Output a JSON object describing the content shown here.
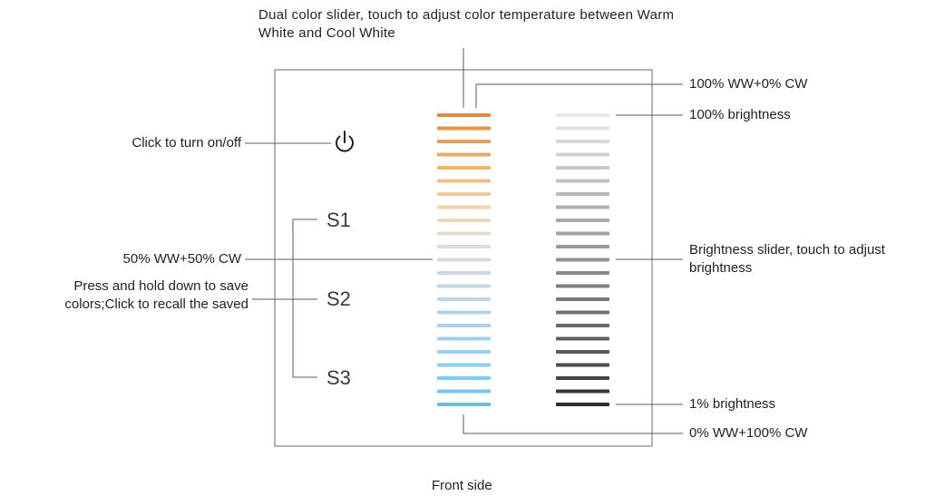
{
  "title_callout": "Dual color slider, touch to adjust color temperature between Warm White and Cool White",
  "labels": {
    "top_color": "100% WW+0% CW",
    "top_brightness": "100% brightness",
    "power": "Click to turn on/off",
    "mid_color": "50% WW+50% CW",
    "brightness_slider": "Brightness slider, touch to adjust brightness",
    "scene": "Press and hold down to save colors;Click to recall the saved",
    "low_brightness": "1% brightness",
    "bottom_color": "0% WW+100% CW",
    "caption": "Front side"
  },
  "scene_keys": [
    "S1",
    "S2",
    "S3"
  ],
  "power_icon": "power-icon",
  "color_slider": {
    "segments": 23,
    "colors": [
      "#e08a3a",
      "#e39549",
      "#e5a05a",
      "#e8aa68",
      "#ebb579",
      "#eec088",
      "#efca98",
      "#efd4aa",
      "#ecd9bb",
      "#e5dbcc",
      "#dcdcda",
      "#d4d9df",
      "#cdd7e2",
      "#c6d6e4",
      "#bed6e7",
      "#b3d4ea",
      "#a9d3ed",
      "#9fd2ef",
      "#95d1f1",
      "#8bd0f3",
      "#80cdf2",
      "#71c7ef",
      "#61c1ec"
    ]
  },
  "brightness_slider": {
    "segments": 23,
    "colors": [
      "#e9e9e9",
      "#e0e0e0",
      "#d8d8d8",
      "#d0d0d0",
      "#c8c8c8",
      "#c0c0c0",
      "#b8b8b8",
      "#b0b0b0",
      "#a8a8a8",
      "#a0a0a0",
      "#989898",
      "#909090",
      "#888888",
      "#808080",
      "#787878",
      "#707070",
      "#676767",
      "#5f5f5f",
      "#575757",
      "#4d4d4d",
      "#434343",
      "#383838",
      "#2d2d2d"
    ]
  }
}
